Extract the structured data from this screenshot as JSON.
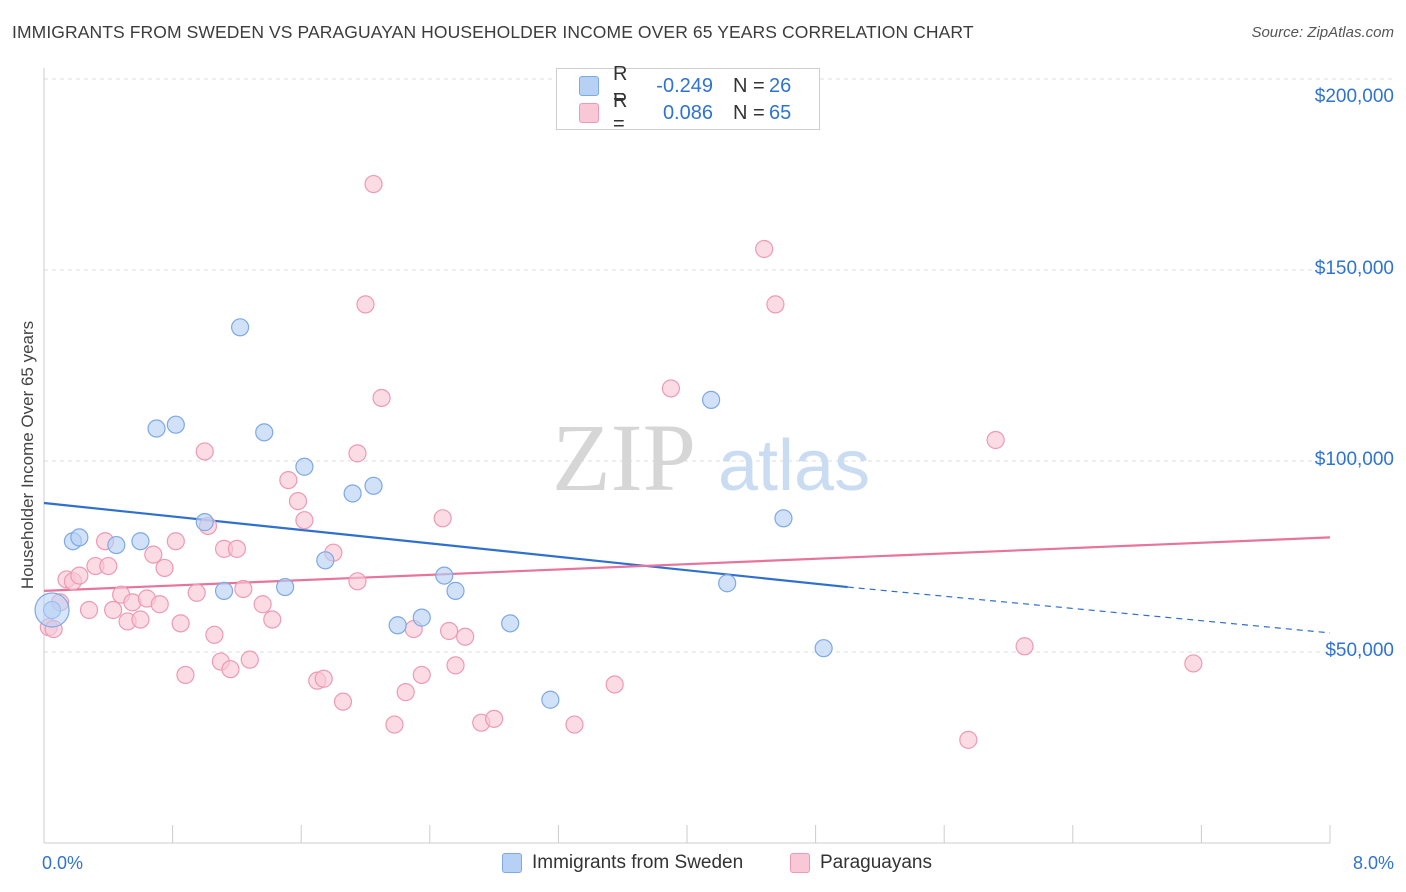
{
  "header": {
    "title": "IMMIGRANTS FROM SWEDEN VS PARAGUAYAN HOUSEHOLDER INCOME OVER 65 YEARS CORRELATION CHART",
    "source": "Source: ZipAtlas.com"
  },
  "legend": {
    "rows": [
      {
        "r_label": "R =",
        "r_value": "-0.249",
        "n_label": "N =",
        "n_value": "26"
      },
      {
        "r_label": "R =",
        "r_value": "0.086",
        "n_label": "N =",
        "n_value": "65"
      }
    ]
  },
  "bottom_legend": {
    "series1": "Immigrants from Sweden",
    "series2": "Paraguayans"
  },
  "watermark": {
    "zip": "ZIP",
    "atlas": "atlas"
  },
  "colors": {
    "blue_fill": "#b7d1f5",
    "blue_stroke": "#7ea9e6",
    "blue_line": "#2f6fcf",
    "pink_fill": "#f9c8d6",
    "pink_stroke": "#ee9ab5",
    "pink_line": "#e8739c",
    "axis_text": "#2f73d2",
    "grid": "#dcdcdc"
  },
  "chart_data": {
    "type": "scatter",
    "title": "IMMIGRANTS FROM SWEDEN VS PARAGUAYAN HOUSEHOLDER INCOME OVER 65 YEARS CORRELATION CHART",
    "xlabel": "",
    "ylabel": "Householder Income Over 65 years",
    "xlim": [
      0,
      8.0
    ],
    "ylim": [
      0,
      210000
    ],
    "x_tick_labels": [
      "0.0%",
      "8.0%"
    ],
    "y_ticks": [
      50000,
      100000,
      150000,
      200000
    ],
    "y_tick_labels": [
      "$50,000",
      "$100,000",
      "$150,000",
      "$200,000"
    ],
    "grid": true,
    "legend_position": "top-center",
    "series": [
      {
        "name": "Immigrants from Sweden",
        "color": "#b7d1f5",
        "points": [
          [
            0.05,
            61000
          ],
          [
            0.18,
            79000
          ],
          [
            0.22,
            80000
          ],
          [
            0.45,
            78000
          ],
          [
            0.6,
            79000
          ],
          [
            0.7,
            108500
          ],
          [
            0.82,
            109500
          ],
          [
            1.0,
            84000
          ],
          [
            1.12,
            66000
          ],
          [
            1.22,
            135000
          ],
          [
            1.37,
            107500
          ],
          [
            1.5,
            67000
          ],
          [
            1.62,
            98500
          ],
          [
            1.75,
            74000
          ],
          [
            1.92,
            91500
          ],
          [
            2.05,
            93500
          ],
          [
            2.2,
            57000
          ],
          [
            2.35,
            59000
          ],
          [
            2.49,
            70000
          ],
          [
            2.56,
            66000
          ],
          [
            2.9,
            57500
          ],
          [
            3.15,
            37500
          ],
          [
            4.15,
            116000
          ],
          [
            4.25,
            68000
          ],
          [
            4.6,
            85000
          ],
          [
            4.85,
            51000
          ]
        ],
        "trend": {
          "x": [
            0.0,
            5.0
          ],
          "y": [
            89000,
            67000
          ],
          "dashed_to": [
            8.0,
            55000
          ]
        }
      },
      {
        "name": "Paraguayans",
        "color": "#f9c8d6",
        "points": [
          [
            0.03,
            56500
          ],
          [
            0.06,
            56000
          ],
          [
            0.1,
            63000
          ],
          [
            0.14,
            69000
          ],
          [
            0.18,
            68500
          ],
          [
            0.22,
            70000
          ],
          [
            0.28,
            61000
          ],
          [
            0.32,
            72500
          ],
          [
            0.38,
            79000
          ],
          [
            0.4,
            72500
          ],
          [
            0.43,
            61000
          ],
          [
            0.48,
            65000
          ],
          [
            0.52,
            58000
          ],
          [
            0.55,
            63000
          ],
          [
            0.6,
            58500
          ],
          [
            0.64,
            64000
          ],
          [
            0.68,
            75500
          ],
          [
            0.72,
            62500
          ],
          [
            0.75,
            72000
          ],
          [
            0.82,
            79000
          ],
          [
            0.85,
            57500
          ],
          [
            0.88,
            44000
          ],
          [
            0.95,
            65500
          ],
          [
            1.0,
            102500
          ],
          [
            1.02,
            83000
          ],
          [
            1.06,
            54500
          ],
          [
            1.1,
            47500
          ],
          [
            1.12,
            77000
          ],
          [
            1.16,
            45500
          ],
          [
            1.2,
            77000
          ],
          [
            1.24,
            66500
          ],
          [
            1.28,
            48000
          ],
          [
            1.36,
            62500
          ],
          [
            1.42,
            58500
          ],
          [
            1.52,
            95000
          ],
          [
            1.58,
            89500
          ],
          [
            1.62,
            84500
          ],
          [
            1.7,
            42500
          ],
          [
            1.74,
            43000
          ],
          [
            1.8,
            76000
          ],
          [
            1.86,
            37000
          ],
          [
            1.95,
            68500
          ],
          [
            2.0,
            141000
          ],
          [
            2.05,
            172500
          ],
          [
            2.1,
            116500
          ],
          [
            2.18,
            31000
          ],
          [
            2.25,
            39500
          ],
          [
            2.3,
            56000
          ],
          [
            2.35,
            44000
          ],
          [
            2.48,
            85000
          ],
          [
            2.52,
            55500
          ],
          [
            2.56,
            46500
          ],
          [
            2.62,
            54000
          ],
          [
            2.72,
            31500
          ],
          [
            2.8,
            32500
          ],
          [
            3.3,
            31000
          ],
          [
            3.55,
            41500
          ],
          [
            3.9,
            119000
          ],
          [
            4.48,
            155500
          ],
          [
            4.55,
            141000
          ],
          [
            5.75,
            27000
          ],
          [
            5.92,
            105500
          ],
          [
            6.1,
            51500
          ],
          [
            7.15,
            47000
          ],
          [
            1.95,
            102000
          ]
        ],
        "trend": {
          "x": [
            0.0,
            8.0
          ],
          "y": [
            66000,
            80000
          ]
        }
      }
    ]
  }
}
